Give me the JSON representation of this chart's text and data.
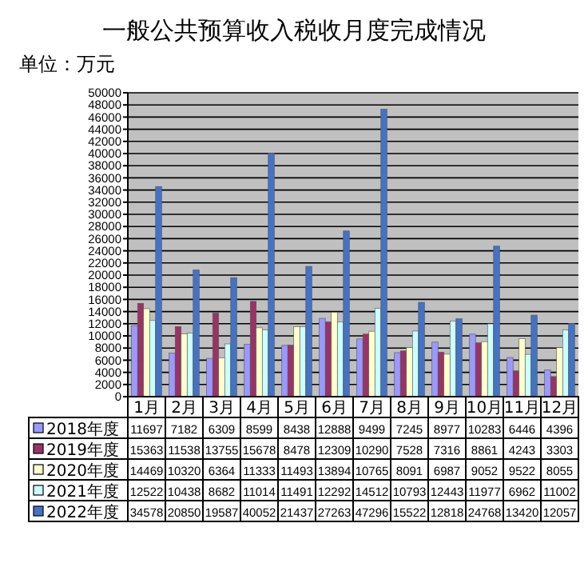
{
  "chart_data": {
    "type": "bar",
    "title": "一般公共预算收入税收月度完成情况",
    "annotations": [
      "单位：万元"
    ],
    "categories": [
      "1月",
      "2月",
      "3月",
      "4月",
      "5月",
      "6月",
      "7月",
      "8月",
      "9月",
      "10月",
      "11月",
      "12月"
    ],
    "series": [
      {
        "name": "2018年度",
        "color": "#9999ff",
        "values": [
          11697,
          7182,
          6309,
          8599,
          8438,
          12888,
          9499,
          7245,
          8977,
          10283,
          6446,
          4396
        ]
      },
      {
        "name": "2019年度",
        "color": "#993366",
        "values": [
          15363,
          11538,
          13755,
          15678,
          8478,
          12309,
          10290,
          7528,
          7316,
          8861,
          4243,
          3303
        ]
      },
      {
        "name": "2020年度",
        "color": "#ffffcc",
        "values": [
          14469,
          10320,
          6364,
          11333,
          11493,
          13894,
          10765,
          8091,
          6987,
          9052,
          9522,
          8055
        ]
      },
      {
        "name": "2021年度",
        "color": "#ccffff",
        "values": [
          12522,
          10438,
          8682,
          11014,
          11491,
          12292,
          14512,
          10793,
          12443,
          11977,
          6962,
          11002
        ]
      },
      {
        "name": "2022年度",
        "color": "#4472c4",
        "values": [
          34578,
          20850,
          19587,
          40052,
          21437,
          27263,
          47296,
          15522,
          12818,
          24768,
          13420,
          12057
        ]
      }
    ],
    "ylim": [
      0,
      50000
    ],
    "yticks": [
      0,
      2000,
      4000,
      6000,
      8000,
      10000,
      12000,
      14000,
      16000,
      18000,
      20000,
      22000,
      24000,
      26000,
      28000,
      30000,
      32000,
      34000,
      36000,
      38000,
      40000,
      42000,
      44000,
      46000,
      48000,
      50000
    ],
    "grid": "y",
    "legend": "bottom",
    "data_labels": true
  }
}
